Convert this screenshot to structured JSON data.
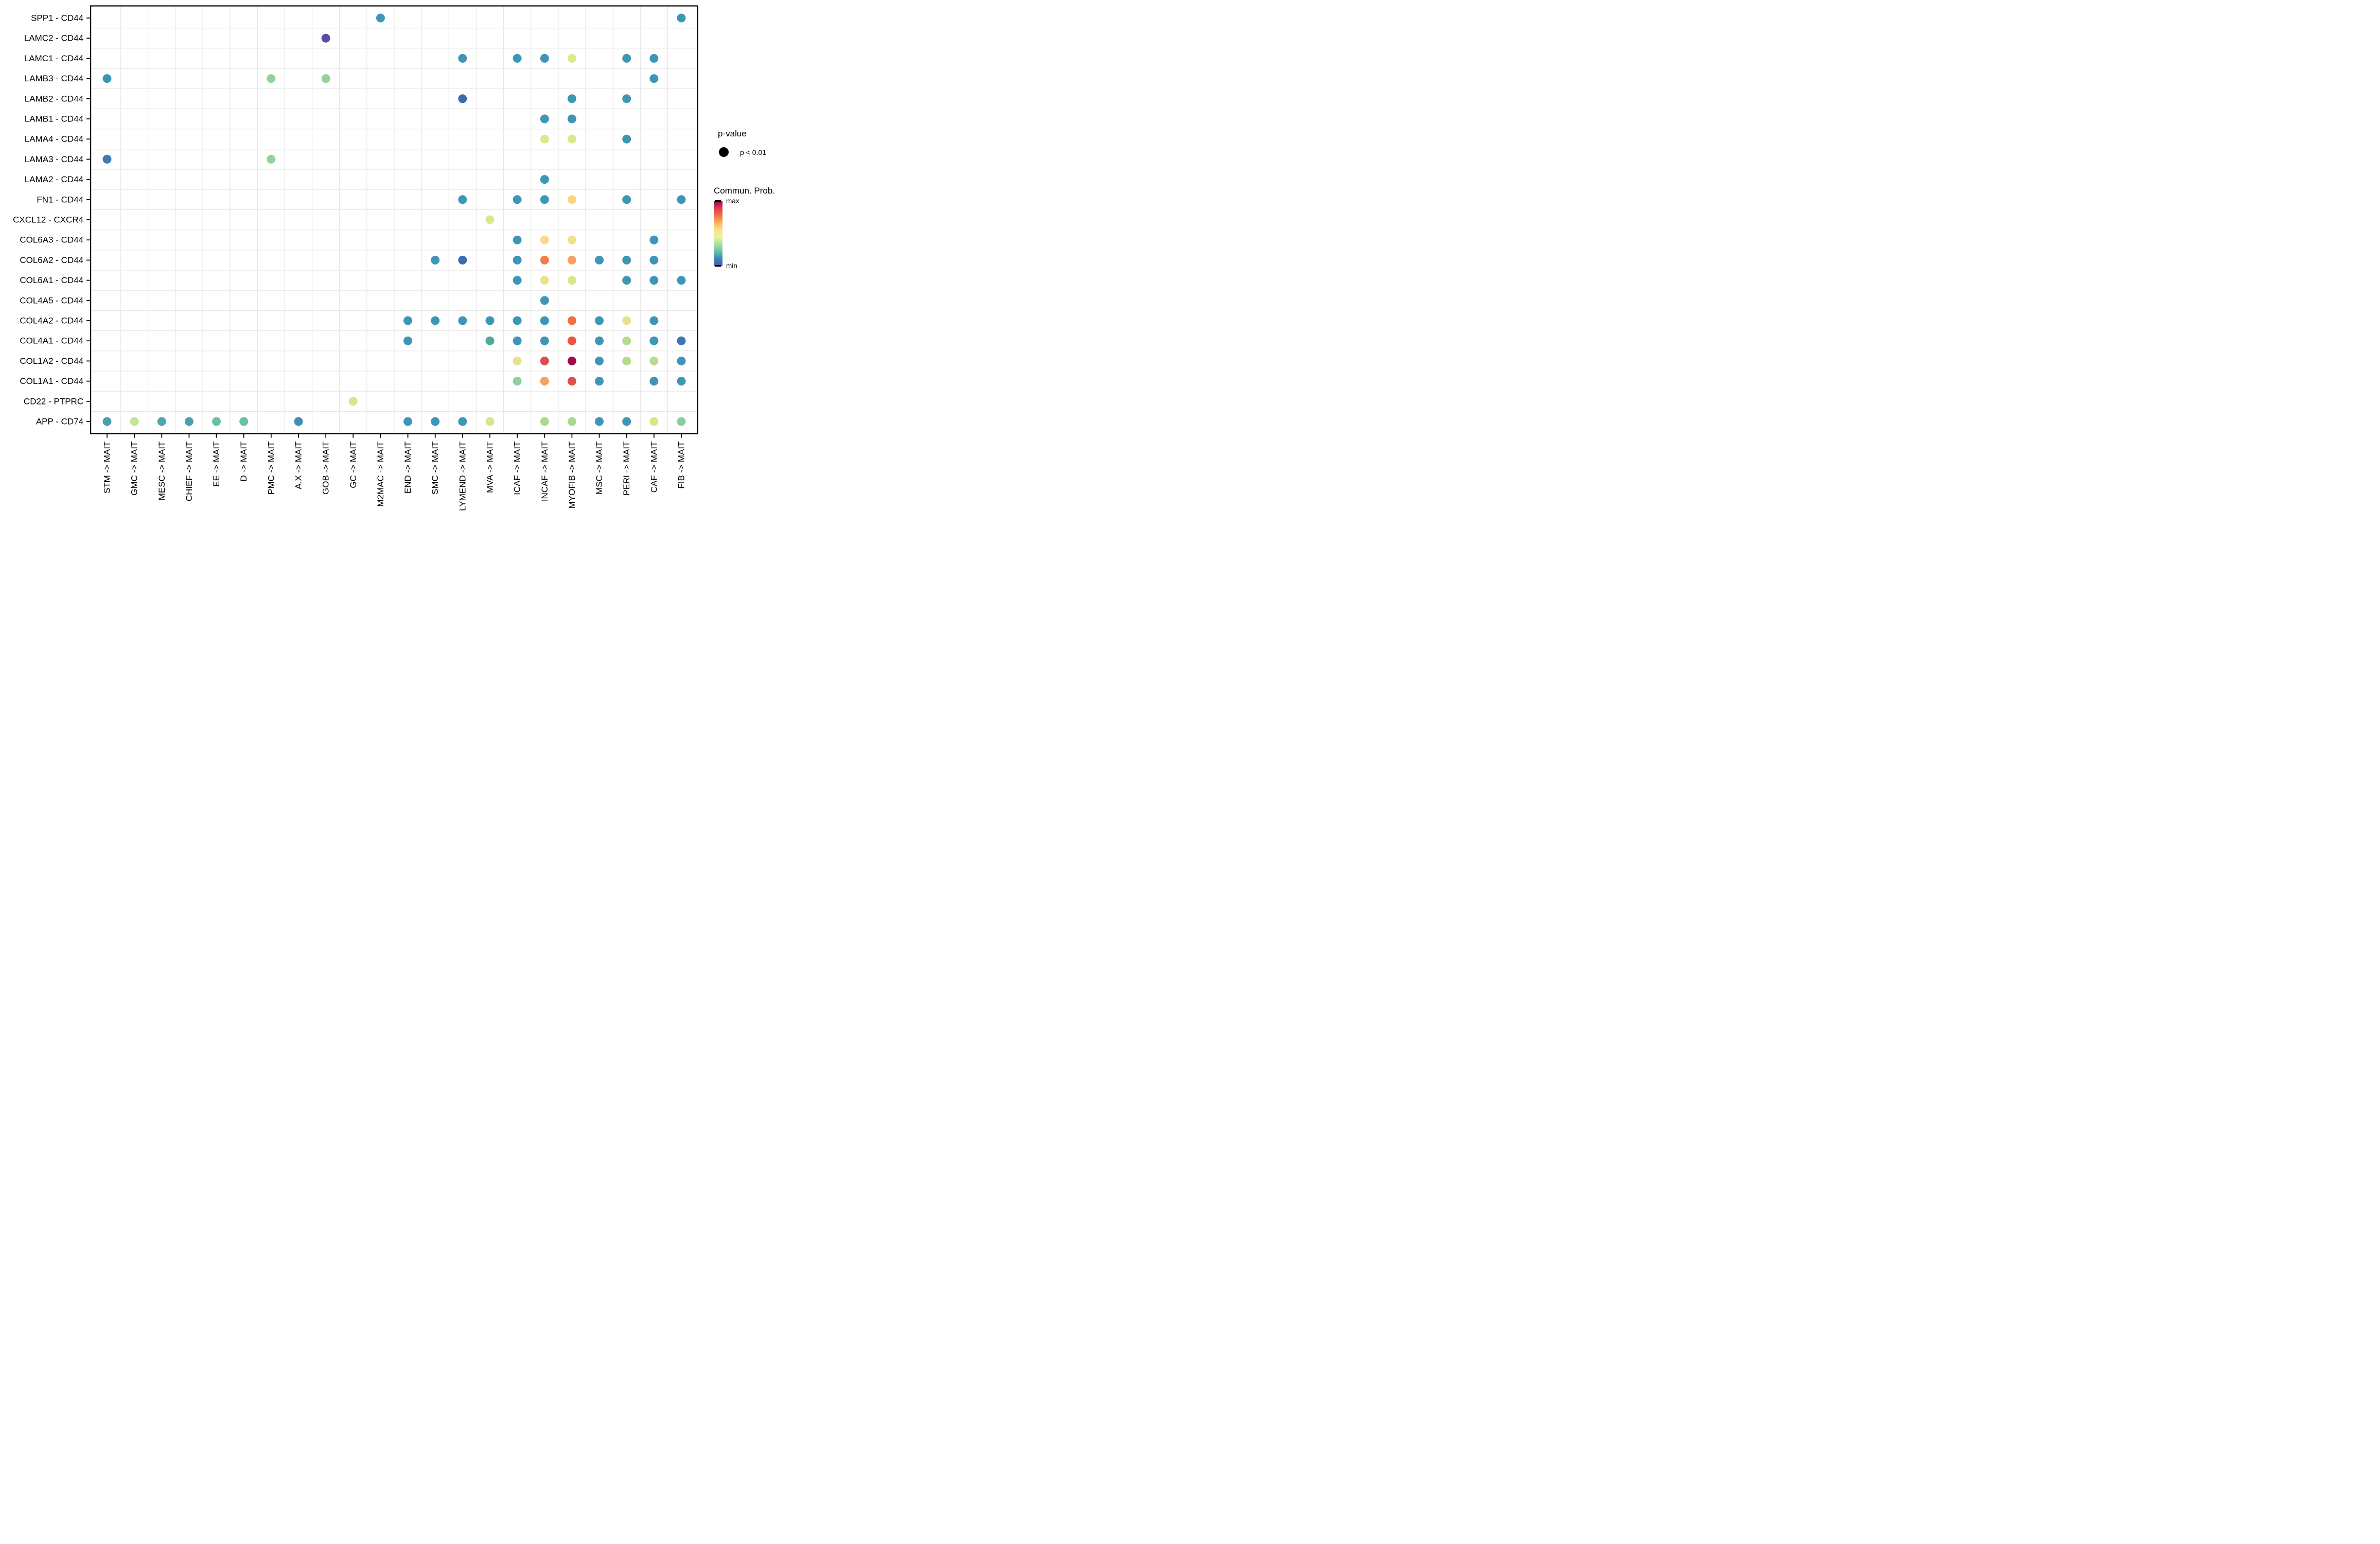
{
  "legend": {
    "pvalue_title": "p-value",
    "pvalue_item_label": "p < 0.01",
    "colorbar_title": "Commun. Prob.",
    "colorbar_max_label": "max",
    "colorbar_min_label": "min"
  },
  "chart_data": {
    "type": "scatter",
    "title": "",
    "xlabel": "",
    "ylabel": "",
    "x_label_suffix": " -> MAIT",
    "x_categories": [
      "STM",
      "GMC",
      "MESC",
      "CHIEF",
      "EE",
      "D",
      "PMC",
      "A.X",
      "GOB",
      "GC",
      "M2MAC",
      "END",
      "SMC",
      "LYMEND",
      "MVA",
      "ICAF",
      "INCAF",
      "MYOFIB",
      "MSC",
      "PERI",
      "CAF",
      "FIB"
    ],
    "y_categories": [
      "SPP1 - CD44",
      "LAMC2 - CD44",
      "LAMC1 - CD44",
      "LAMB3 - CD44",
      "LAMB2 - CD44",
      "LAMB1 - CD44",
      "LAMA4 - CD44",
      "LAMA3 - CD44",
      "LAMA2 - CD44",
      "FN1 - CD44",
      "CXCL12 - CXCR4",
      "COL6A3 - CD44",
      "COL6A2 - CD44",
      "COL6A1 - CD44",
      "COL4A5 - CD44",
      "COL4A2 - CD44",
      "COL4A1 - CD44",
      "COL1A2 - CD44",
      "COL1A1 - CD44",
      "CD22 - PTPRC",
      "APP - CD74"
    ],
    "legend_position": "right",
    "grid": "minor-only",
    "dot_size_meaning": "p < 0.01",
    "color_scale": {
      "title": "Commun. Prob.",
      "min_label": "min",
      "max_label": "max",
      "spectral_colors_top_to_bottom": [
        "#9E0142",
        "#D53E4F",
        "#F46D43",
        "#FDAE61",
        "#FEE08B",
        "#E6F598",
        "#ABDDA4",
        "#66C2A5",
        "#3288BD",
        "#5E4FA2"
      ]
    },
    "layout": {
      "grid_color": "#e6e6e6",
      "border_color": "#000000",
      "tick_color": "#000000",
      "text_color": "#000000",
      "background": "#ffffff",
      "dot_radius": 8.5
    },
    "points": [
      {
        "x": "M2MAC",
        "y": "SPP1 - CD44",
        "c": "#3E96B7"
      },
      {
        "x": "FIB",
        "y": "SPP1 - CD44",
        "c": "#3E96B7"
      },
      {
        "x": "GOB",
        "y": "LAMC2 - CD44",
        "c": "#5B4EA1"
      },
      {
        "x": "LYMEND",
        "y": "LAMC1 - CD44",
        "c": "#3E96B7"
      },
      {
        "x": "ICAF",
        "y": "LAMC1 - CD44",
        "c": "#3E96B7"
      },
      {
        "x": "INCAF",
        "y": "LAMC1 - CD44",
        "c": "#3E96B7"
      },
      {
        "x": "MYOFIB",
        "y": "LAMC1 - CD44",
        "c": "#DCE98A"
      },
      {
        "x": "PERI",
        "y": "LAMC1 - CD44",
        "c": "#3E96B7"
      },
      {
        "x": "CAF",
        "y": "LAMC1 - CD44",
        "c": "#3E96B7"
      },
      {
        "x": "STM",
        "y": "LAMB3 - CD44",
        "c": "#3D93B6"
      },
      {
        "x": "PMC",
        "y": "LAMB3 - CD44",
        "c": "#96D09B"
      },
      {
        "x": "GOB",
        "y": "LAMB3 - CD44",
        "c": "#96D09B"
      },
      {
        "x": "CAF",
        "y": "LAMB3 - CD44",
        "c": "#3E96B7"
      },
      {
        "x": "LYMEND",
        "y": "LAMB2 - CD44",
        "c": "#3B6CAE"
      },
      {
        "x": "MYOFIB",
        "y": "LAMB2 - CD44",
        "c": "#3E96B7"
      },
      {
        "x": "PERI",
        "y": "LAMB2 - CD44",
        "c": "#3E96B7"
      },
      {
        "x": "INCAF",
        "y": "LAMB1 - CD44",
        "c": "#3E96B7"
      },
      {
        "x": "MYOFIB",
        "y": "LAMB1 - CD44",
        "c": "#3E96B7"
      },
      {
        "x": "INCAF",
        "y": "LAMA4 - CD44",
        "c": "#DCE98A"
      },
      {
        "x": "MYOFIB",
        "y": "LAMA4 - CD44",
        "c": "#DCE98A"
      },
      {
        "x": "PERI",
        "y": "LAMA4 - CD44",
        "c": "#3E96B7"
      },
      {
        "x": "STM",
        "y": "LAMA3 - CD44",
        "c": "#3A7CB3"
      },
      {
        "x": "PMC",
        "y": "LAMA3 - CD44",
        "c": "#96D09B"
      },
      {
        "x": "INCAF",
        "y": "LAMA2 - CD44",
        "c": "#3E96B7"
      },
      {
        "x": "LYMEND",
        "y": "FN1 - CD44",
        "c": "#3E96B7"
      },
      {
        "x": "ICAF",
        "y": "FN1 - CD44",
        "c": "#3E96B7"
      },
      {
        "x": "INCAF",
        "y": "FN1 - CD44",
        "c": "#3E96B7"
      },
      {
        "x": "MYOFIB",
        "y": "FN1 - CD44",
        "c": "#FBD47E"
      },
      {
        "x": "PERI",
        "y": "FN1 - CD44",
        "c": "#3E96B7"
      },
      {
        "x": "FIB",
        "y": "FN1 - CD44",
        "c": "#3E96B7"
      },
      {
        "x": "MVA",
        "y": "CXCL12 - CXCR4",
        "c": "#D9E88A"
      },
      {
        "x": "ICAF",
        "y": "COL6A3 - CD44",
        "c": "#3E96B7"
      },
      {
        "x": "INCAF",
        "y": "COL6A3 - CD44",
        "c": "#FBD986"
      },
      {
        "x": "MYOFIB",
        "y": "COL6A3 - CD44",
        "c": "#ECE28A"
      },
      {
        "x": "CAF",
        "y": "COL6A3 - CD44",
        "c": "#3E96B7"
      },
      {
        "x": "SMC",
        "y": "COL6A2 - CD44",
        "c": "#3E96B7"
      },
      {
        "x": "LYMEND",
        "y": "COL6A2 - CD44",
        "c": "#3B6CAE"
      },
      {
        "x": "ICAF",
        "y": "COL6A2 - CD44",
        "c": "#3E96B7"
      },
      {
        "x": "INCAF",
        "y": "COL6A2 - CD44",
        "c": "#F07D4A"
      },
      {
        "x": "MYOFIB",
        "y": "COL6A2 - CD44",
        "c": "#F99F5F"
      },
      {
        "x": "MSC",
        "y": "COL6A2 - CD44",
        "c": "#3E96B7"
      },
      {
        "x": "PERI",
        "y": "COL6A2 - CD44",
        "c": "#3E96B7"
      },
      {
        "x": "CAF",
        "y": "COL6A2 - CD44",
        "c": "#3E96B7"
      },
      {
        "x": "ICAF",
        "y": "COL6A1 - CD44",
        "c": "#3E96B7"
      },
      {
        "x": "INCAF",
        "y": "COL6A1 - CD44",
        "c": "#EBE28B"
      },
      {
        "x": "MYOFIB",
        "y": "COL6A1 - CD44",
        "c": "#D7E88B"
      },
      {
        "x": "PERI",
        "y": "COL6A1 - CD44",
        "c": "#3E96B7"
      },
      {
        "x": "CAF",
        "y": "COL6A1 - CD44",
        "c": "#3E96B7"
      },
      {
        "x": "FIB",
        "y": "COL6A1 - CD44",
        "c": "#3E96B7"
      },
      {
        "x": "INCAF",
        "y": "COL4A5 - CD44",
        "c": "#3E96B7"
      },
      {
        "x": "END",
        "y": "COL4A2 - CD44",
        "c": "#3E96B7"
      },
      {
        "x": "SMC",
        "y": "COL4A2 - CD44",
        "c": "#3E96B7"
      },
      {
        "x": "LYMEND",
        "y": "COL4A2 - CD44",
        "c": "#3E96B7"
      },
      {
        "x": "MVA",
        "y": "COL4A2 - CD44",
        "c": "#3E96B7"
      },
      {
        "x": "ICAF",
        "y": "COL4A2 - CD44",
        "c": "#3E96B7"
      },
      {
        "x": "INCAF",
        "y": "COL4A2 - CD44",
        "c": "#3E96B7"
      },
      {
        "x": "MYOFIB",
        "y": "COL4A2 - CD44",
        "c": "#F1703F"
      },
      {
        "x": "MSC",
        "y": "COL4A2 - CD44",
        "c": "#3E96B7"
      },
      {
        "x": "PERI",
        "y": "COL4A2 - CD44",
        "c": "#E8E18A"
      },
      {
        "x": "CAF",
        "y": "COL4A2 - CD44",
        "c": "#3E96B7"
      },
      {
        "x": "END",
        "y": "COL4A1 - CD44",
        "c": "#3E96B7"
      },
      {
        "x": "MVA",
        "y": "COL4A1 - CD44",
        "c": "#4DAB9B"
      },
      {
        "x": "ICAF",
        "y": "COL4A1 - CD44",
        "c": "#3E96B7"
      },
      {
        "x": "INCAF",
        "y": "COL4A1 - CD44",
        "c": "#3E96B7"
      },
      {
        "x": "MYOFIB",
        "y": "COL4A1 - CD44",
        "c": "#E8573F"
      },
      {
        "x": "MSC",
        "y": "COL4A1 - CD44",
        "c": "#3E96B7"
      },
      {
        "x": "PERI",
        "y": "COL4A1 - CD44",
        "c": "#B5DC8E"
      },
      {
        "x": "CAF",
        "y": "COL4A1 - CD44",
        "c": "#3E96B7"
      },
      {
        "x": "FIB",
        "y": "COL4A1 - CD44",
        "c": "#3A76B4"
      },
      {
        "x": "ICAF",
        "y": "COL1A2 - CD44",
        "c": "#E5E28B"
      },
      {
        "x": "INCAF",
        "y": "COL1A2 - CD44",
        "c": "#D84F55"
      },
      {
        "x": "MYOFIB",
        "y": "COL1A2 - CD44",
        "c": "#A00C4A"
      },
      {
        "x": "MSC",
        "y": "COL1A2 - CD44",
        "c": "#3E96B7"
      },
      {
        "x": "PERI",
        "y": "COL1A2 - CD44",
        "c": "#B5DC8E"
      },
      {
        "x": "CAF",
        "y": "COL1A2 - CD44",
        "c": "#B5DC8E"
      },
      {
        "x": "FIB",
        "y": "COL1A2 - CD44",
        "c": "#3E96B7"
      },
      {
        "x": "ICAF",
        "y": "COL1A1 - CD44",
        "c": "#8ED0A0"
      },
      {
        "x": "INCAF",
        "y": "COL1A1 - CD44",
        "c": "#F5A163"
      },
      {
        "x": "MYOFIB",
        "y": "COL1A1 - CD44",
        "c": "#DC4F4B"
      },
      {
        "x": "MSC",
        "y": "COL1A1 - CD44",
        "c": "#3E96B7"
      },
      {
        "x": "CAF",
        "y": "COL1A1 - CD44",
        "c": "#3E96B7"
      },
      {
        "x": "FIB",
        "y": "COL1A1 - CD44",
        "c": "#3E96B7"
      },
      {
        "x": "GC",
        "y": "CD22 - PTPRC",
        "c": "#D5E78B"
      },
      {
        "x": "STM",
        "y": "APP - CD74",
        "c": "#4AA0AF"
      },
      {
        "x": "GMC",
        "y": "APP - CD74",
        "c": "#C2E39A"
      },
      {
        "x": "MESC",
        "y": "APP - CD74",
        "c": "#4DA7AB"
      },
      {
        "x": "CHIEF",
        "y": "APP - CD74",
        "c": "#4AA0AF"
      },
      {
        "x": "EE",
        "y": "APP - CD74",
        "c": "#66C2A4"
      },
      {
        "x": "D",
        "y": "APP - CD74",
        "c": "#66C2A4"
      },
      {
        "x": "A.X",
        "y": "APP - CD74",
        "c": "#3E8FB2"
      },
      {
        "x": "END",
        "y": "APP - CD74",
        "c": "#3E96B7"
      },
      {
        "x": "SMC",
        "y": "APP - CD74",
        "c": "#3E96B7"
      },
      {
        "x": "LYMEND",
        "y": "APP - CD74",
        "c": "#3E96B7"
      },
      {
        "x": "MVA",
        "y": "APP - CD74",
        "c": "#D5E78B"
      },
      {
        "x": "INCAF",
        "y": "APP - CD74",
        "c": "#ABD98C"
      },
      {
        "x": "MYOFIB",
        "y": "APP - CD74",
        "c": "#ABD98C"
      },
      {
        "x": "MSC",
        "y": "APP - CD74",
        "c": "#3E96B7"
      },
      {
        "x": "PERI",
        "y": "APP - CD74",
        "c": "#3E96B7"
      },
      {
        "x": "CAF",
        "y": "APP - CD74",
        "c": "#D2E88B"
      },
      {
        "x": "FIB",
        "y": "APP - CD74",
        "c": "#8BCDA0"
      }
    ]
  }
}
